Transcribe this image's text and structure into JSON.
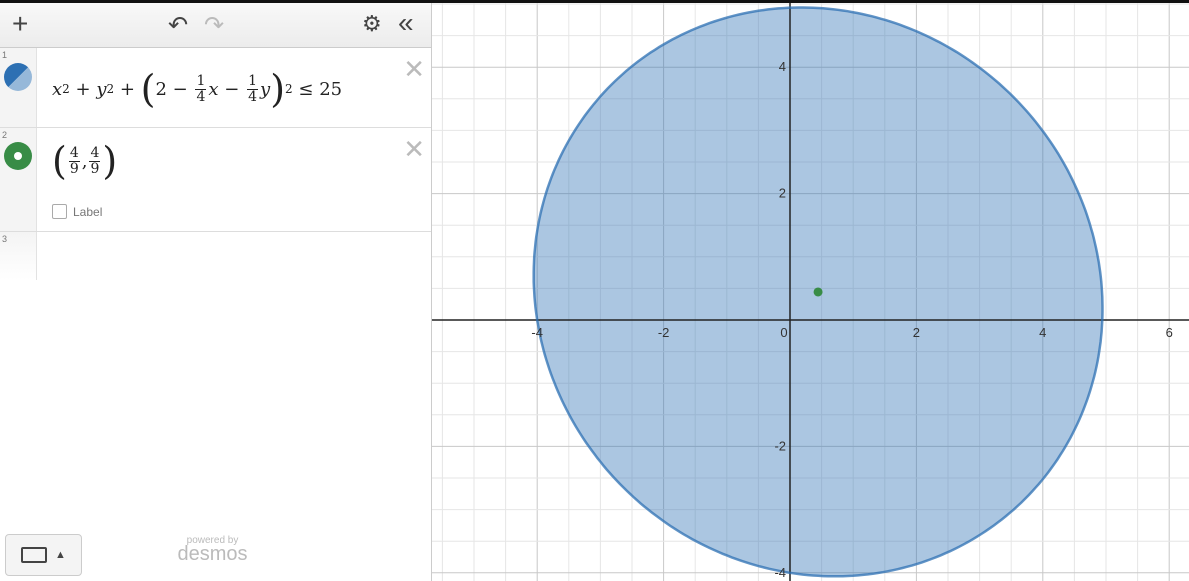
{
  "toolbar": {
    "add": "+",
    "undo": "↶",
    "redo": "↷",
    "settings": "⚙",
    "collapse": "«"
  },
  "expressions": [
    {
      "index": "1",
      "latex": "x^2+y^2+(2-\\frac{1}{4}x-\\frac{1}{4}y)^2 \\le 25",
      "color": "#2d70b3",
      "rhs": "25"
    },
    {
      "index": "2",
      "latex": "(\\frac{4}{9},\\frac{4}{9})",
      "color": "#388c46",
      "label_checkbox": "Label",
      "label_checked": false
    },
    {
      "index": "3",
      "latex": ""
    }
  ],
  "footer": {
    "powered_by": "powered by",
    "brand": "desmos",
    "keyboard_icon": "keyboard-icon"
  },
  "graph": {
    "x_ticks": [
      "-4",
      "-2",
      "0",
      "2",
      "4",
      "6"
    ],
    "y_ticks": [
      "4",
      "2",
      "-2",
      "-4"
    ],
    "region_color": "#2d70b3",
    "point": [
      0.444,
      0.444
    ],
    "point_color": "#388c46"
  }
}
